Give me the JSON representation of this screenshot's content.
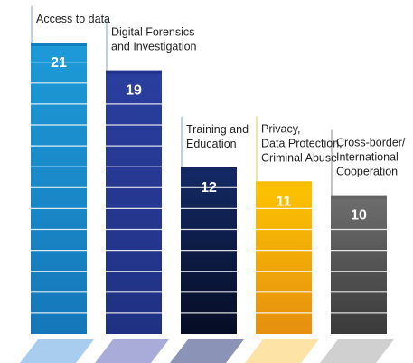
{
  "chart_data": {
    "type": "bar",
    "categories": [
      "Access to data",
      "Digital Forensics\nand Investigation",
      "Training and\nEducation",
      "Privacy,\nData Protection,\nCriminal Abuse",
      "Cross-border/\nInternational\nCooperation"
    ],
    "values": [
      21,
      19,
      12,
      11,
      10
    ],
    "data_labels": [
      "21",
      "19",
      "12",
      "11",
      "10"
    ],
    "title": "",
    "xlabel": "",
    "ylabel": "",
    "ylim": [
      0,
      21
    ],
    "grid": false,
    "legend": "none",
    "colors": {
      "bars": [
        {
          "top": "#1e9ad8",
          "bottom": "#1577b9",
          "accent": "#0d6fb3",
          "shadow": "#a8cdee"
        },
        {
          "top": "#2a3e9e",
          "bottom": "#203183",
          "accent": "#1a2a80",
          "shadow": "#a9acd9"
        },
        {
          "top": "#142a66",
          "bottom": "#060d24",
          "accent": "#10265e",
          "shadow": "#8b94b6"
        },
        {
          "top": "#fcc400",
          "bottom": "#e68f10",
          "accent": "#f1b800",
          "shadow": "#fde3a5"
        },
        {
          "top": "#6e6e6e",
          "bottom": "#3a3a3a",
          "accent": "#5f5f5f",
          "shadow": "#d0d0d0"
        }
      ],
      "leader": "#7aa6c8",
      "separator": "#ffffff"
    }
  }
}
